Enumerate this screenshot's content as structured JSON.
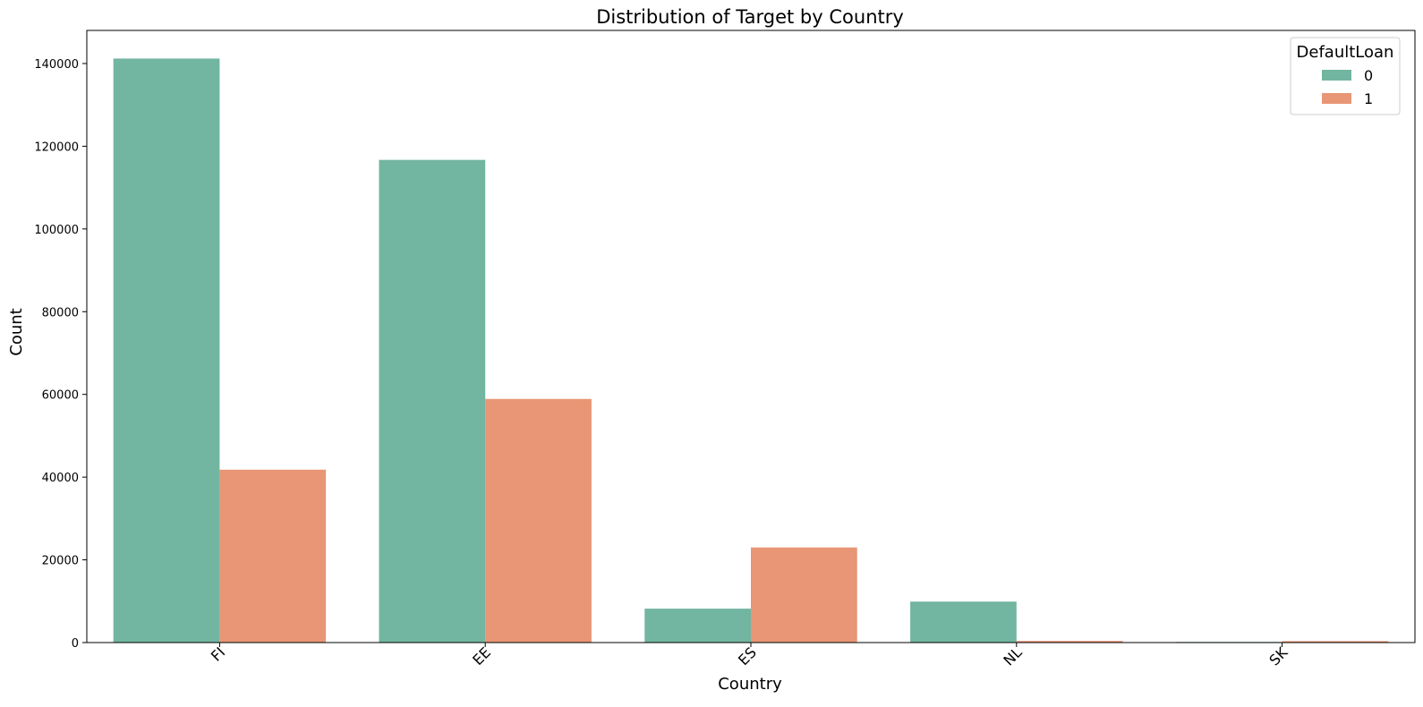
{
  "chart_data": {
    "type": "bar",
    "title": "Distribution of Target by Country",
    "xlabel": "Country",
    "ylabel": "Count",
    "categories": [
      "FI",
      "EE",
      "ES",
      "NL",
      "SK"
    ],
    "series": [
      {
        "name": "0",
        "values": [
          141200,
          116700,
          8200,
          9900,
          150
        ]
      },
      {
        "name": "1",
        "values": [
          41800,
          58900,
          23000,
          400,
          350
        ]
      }
    ],
    "ylim": [
      0,
      148000
    ],
    "yticks": [
      0,
      20000,
      40000,
      60000,
      80000,
      100000,
      120000,
      140000
    ],
    "ytick_labels": [
      "0",
      "20000",
      "40000",
      "60000",
      "80000",
      "100000",
      "120000",
      "140000"
    ],
    "legend": {
      "title": "DefaultLoan",
      "position": "top-right"
    },
    "grid": false,
    "colors": [
      "#72b5a0",
      "#e89675"
    ]
  }
}
